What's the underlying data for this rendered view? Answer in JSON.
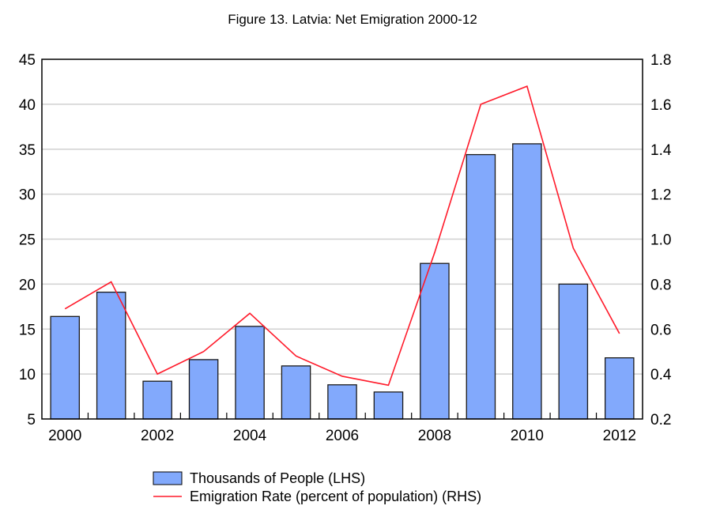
{
  "chart_data": {
    "type": "bar+line",
    "title": "Figure 13. Latvia: Net Emigration 2000-12",
    "categories": [
      "2000",
      "2001",
      "2002",
      "2003",
      "2004",
      "2005",
      "2006",
      "2007",
      "2008",
      "2009",
      "2010",
      "2011",
      "2012"
    ],
    "x_tick_labels": [
      "2000",
      "",
      "2002",
      "",
      "2004",
      "",
      "2006",
      "",
      "2008",
      "",
      "2010",
      "",
      "2012"
    ],
    "series": [
      {
        "name": "Thousands of People (LHS)",
        "type": "bar",
        "axis": "left",
        "color": "#82a9fc",
        "values": [
          16.4,
          19.1,
          9.2,
          11.6,
          15.3,
          10.9,
          8.8,
          8.0,
          22.3,
          34.4,
          35.6,
          20.0,
          11.8
        ]
      },
      {
        "name": "Emigration Rate (percent of population) (RHS)",
        "type": "line",
        "axis": "right",
        "color": "#ff1a2a",
        "values": [
          0.69,
          0.81,
          0.4,
          0.5,
          0.67,
          0.48,
          0.39,
          0.35,
          0.94,
          1.6,
          1.68,
          0.96,
          0.58
        ]
      }
    ],
    "y_left": {
      "range": [
        5,
        45
      ],
      "ticks": [
        "5",
        "10",
        "15",
        "20",
        "25",
        "30",
        "35",
        "40",
        "45"
      ]
    },
    "y_right": {
      "range": [
        0.2,
        1.8
      ],
      "ticks": [
        "0.2",
        "0.4",
        "0.6",
        "0.8",
        "1.0",
        "1.2",
        "1.4",
        "1.6",
        "1.8"
      ]
    },
    "grid": true,
    "legend": "bottom-center"
  }
}
